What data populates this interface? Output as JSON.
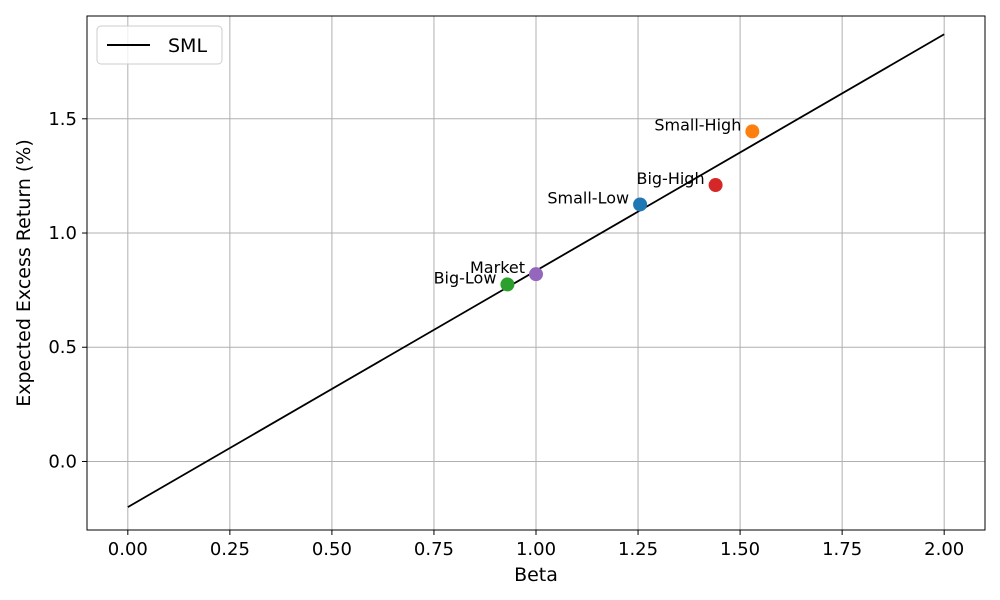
{
  "chart_data": {
    "type": "scatter",
    "title": "",
    "xlabel": "Beta",
    "ylabel": "Expected Excess Return (%)",
    "xlim": [
      -0.1,
      2.1
    ],
    "ylim": [
      -0.3,
      1.95
    ],
    "xticks": [
      0.0,
      0.25,
      0.5,
      0.75,
      1.0,
      1.25,
      1.5,
      1.75,
      2.0
    ],
    "xtick_labels": [
      "0.00",
      "0.25",
      "0.50",
      "0.75",
      "1.00",
      "1.25",
      "1.50",
      "1.75",
      "2.00"
    ],
    "yticks": [
      0.0,
      0.5,
      1.0,
      1.5
    ],
    "ytick_labels": [
      "0.0",
      "0.5",
      "1.0",
      "1.5"
    ],
    "grid": true,
    "legend": {
      "position": "top-left",
      "entries": [
        "SML"
      ]
    },
    "line": {
      "name": "SML",
      "color": "#000000",
      "x": [
        0.0,
        2.0
      ],
      "y": [
        -0.2,
        1.87
      ]
    },
    "points": [
      {
        "label": "Small-Low",
        "x": 1.255,
        "y": 1.125,
        "color": "#1f77b4"
      },
      {
        "label": "Small-High",
        "x": 1.53,
        "y": 1.445,
        "color": "#ff7f0e"
      },
      {
        "label": "Big-Low",
        "x": 0.93,
        "y": 0.775,
        "color": "#2ca02c"
      },
      {
        "label": "Big-High",
        "x": 1.44,
        "y": 1.21,
        "color": "#d62728"
      },
      {
        "label": "Market",
        "x": 1.0,
        "y": 0.82,
        "color": "#9467bd"
      }
    ]
  }
}
